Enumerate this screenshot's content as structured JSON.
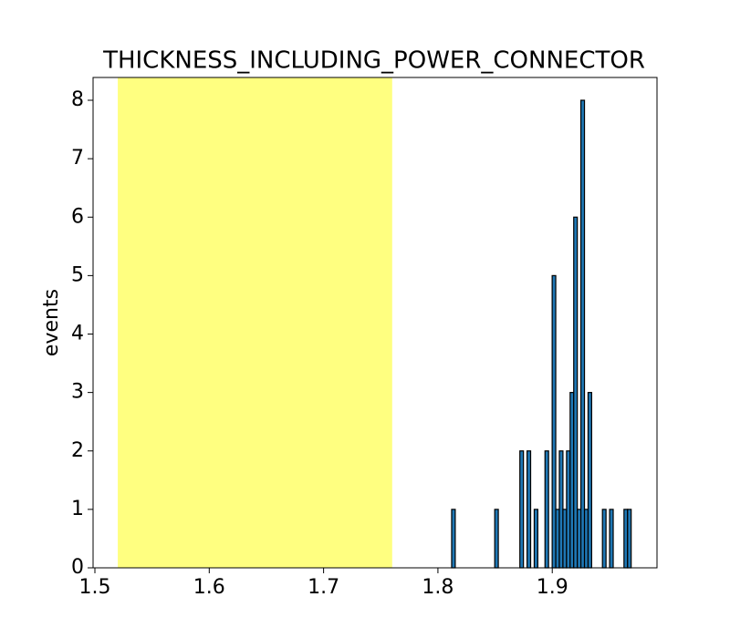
{
  "chart_data": {
    "type": "histogram",
    "title": "THICKNESS_INCLUDING_POWER_CONNECTOR",
    "y_label": "events",
    "bins": [
      1.812,
      1.81514,
      1.81828,
      1.82142,
      1.82456,
      1.8277,
      1.83084,
      1.83398,
      1.83712,
      1.84026,
      1.8434,
      1.84654,
      1.84968,
      1.85282,
      1.85596,
      1.8591,
      1.86224,
      1.86538,
      1.86852,
      1.87166,
      1.8748,
      1.87794,
      1.88108,
      1.88422,
      1.88736,
      1.8905,
      1.89364,
      1.89678,
      1.89992,
      1.90306,
      1.9062,
      1.90934,
      1.91248,
      1.91562,
      1.91876,
      1.9219,
      1.92504,
      1.92818,
      1.93132,
      1.93446,
      1.9376,
      1.94074,
      1.94388,
      1.94702,
      1.95016,
      1.9533,
      1.95644,
      1.95958,
      1.96272,
      1.96586,
      1.969
    ],
    "values": [
      1,
      0,
      0,
      0,
      0,
      0,
      0,
      0,
      0,
      0,
      0,
      0,
      1,
      0,
      0,
      0,
      0,
      0,
      0,
      2,
      0,
      2,
      0,
      1,
      0,
      0,
      2,
      0,
      5,
      1,
      2,
      1,
      2,
      3,
      6,
      1,
      8,
      1,
      3,
      0,
      0,
      0,
      1,
      0,
      1,
      0,
      0,
      0,
      1,
      1
    ],
    "color": "#1f77b4",
    "edge_color": "#000000",
    "span": [
      1.52,
      1.76
    ],
    "span_color": "#ffff80",
    "xlim": [
      1.4984,
      1.9916
    ],
    "ylim": [
      0,
      8.39
    ],
    "xticks": [
      1.5,
      1.6,
      1.7,
      1.8,
      1.9
    ],
    "yticks": [
      0,
      1,
      2,
      3,
      4,
      5,
      6,
      7,
      8
    ],
    "grid": false
  }
}
